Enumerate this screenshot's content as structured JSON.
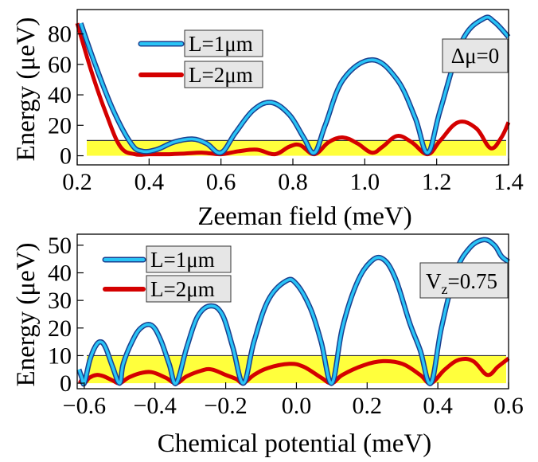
{
  "colors": {
    "series_L1_fill": "#29c4f6",
    "series_L1_outline": "#1a3f8f",
    "series_L2": "#d40000",
    "band": "#ffff3c",
    "annotation_box": "#e6e6e6"
  },
  "chart_data": [
    {
      "type": "line",
      "xlabel": "Zeeman field (meV)",
      "ylabel": "Energy (μeV)",
      "xlim": [
        0.2,
        1.4
      ],
      "ylim": [
        -6,
        96
      ],
      "xticks": [
        "0.2",
        "0.4",
        "0.6",
        "0.8",
        "1.0",
        "1.2",
        "1.4"
      ],
      "yticks": [
        "0",
        "20",
        "40",
        "60",
        "80"
      ],
      "legend": {
        "position": "top-left",
        "entries": [
          "L=1μm",
          "L=2μm"
        ]
      },
      "annotation": "Δμ=0",
      "band": {
        "ymin": 0,
        "ymax": 10
      },
      "series": [
        {
          "name": "L=1μm",
          "x": [
            0.21,
            0.25,
            0.3,
            0.35,
            0.38,
            0.42,
            0.47,
            0.52,
            0.56,
            0.6,
            0.64,
            0.69,
            0.74,
            0.79,
            0.83,
            0.86,
            0.89,
            0.94,
            1.02,
            1.09,
            1.14,
            1.175,
            1.21,
            1.27,
            1.33,
            1.36,
            1.4
          ],
          "values": [
            87,
            60,
            30,
            8,
            3,
            4,
            9,
            11,
            8,
            2,
            15,
            30,
            35,
            27,
            12,
            2,
            20,
            50,
            63,
            50,
            25,
            2,
            30,
            75,
            90,
            88,
            78
          ]
        },
        {
          "name": "L=2μm",
          "x": [
            0.2,
            0.24,
            0.28,
            0.32,
            0.36,
            0.4,
            0.45,
            0.5,
            0.55,
            0.6,
            0.65,
            0.7,
            0.75,
            0.79,
            0.82,
            0.86,
            0.9,
            0.94,
            0.98,
            1.02,
            1.05,
            1.09,
            1.13,
            1.175,
            1.21,
            1.26,
            1.31,
            1.35,
            1.38,
            1.4
          ],
          "values": [
            87,
            55,
            28,
            6,
            1,
            1,
            1,
            1.5,
            2,
            1,
            3,
            4,
            1,
            6,
            7,
            1,
            9,
            12,
            8,
            2,
            6,
            13,
            9,
            1,
            10,
            22,
            18,
            5,
            12,
            22
          ]
        }
      ]
    },
    {
      "type": "line",
      "xlabel": "Chemical potential (meV)",
      "ylabel": "Energy (μeV)",
      "xlim": [
        -0.62,
        0.6
      ],
      "ylim": [
        -2,
        54
      ],
      "xticks": [
        "−0.6",
        "−0.4",
        "−0.2",
        "0.0",
        "0.2",
        "0.4",
        "0.6"
      ],
      "yticks": [
        "0",
        "10",
        "20",
        "30",
        "40",
        "50"
      ],
      "legend": {
        "position": "top-left",
        "entries": [
          "L=1μm",
          "L=2μm"
        ]
      },
      "annotation": "V",
      "annotation_sub": "z",
      "annotation_tail": "=0.75",
      "band": {
        "ymin": 0,
        "ymax": 10
      },
      "series": [
        {
          "name": "L=1μm",
          "x": [
            -0.615,
            -0.607,
            -0.6,
            -0.585,
            -0.57,
            -0.555,
            -0.54,
            -0.52,
            -0.5,
            -0.49,
            -0.465,
            -0.44,
            -0.41,
            -0.385,
            -0.36,
            -0.34,
            -0.31,
            -0.28,
            -0.245,
            -0.21,
            -0.18,
            -0.15,
            -0.12,
            -0.08,
            -0.03,
            0.0,
            0.04,
            0.07,
            0.1,
            0.13,
            0.17,
            0.21,
            0.245,
            0.28,
            0.32,
            0.35,
            0.38,
            0.41,
            0.45,
            0.49,
            0.53,
            0.56,
            0.58,
            0.6
          ],
          "values": [
            5,
            2,
            0,
            8,
            13,
            15,
            13,
            6,
            0,
            7,
            15,
            20,
            21,
            16,
            7,
            0,
            13,
            24,
            28,
            25,
            13,
            0,
            15,
            30,
            37,
            36,
            27,
            15,
            0,
            20,
            36,
            44,
            45,
            38,
            22,
            12,
            0,
            20,
            40,
            49,
            52,
            50,
            46,
            44
          ]
        },
        {
          "name": "L=2μm",
          "x": [
            -0.615,
            -0.6,
            -0.585,
            -0.565,
            -0.545,
            -0.52,
            -0.5,
            -0.475,
            -0.445,
            -0.41,
            -0.37,
            -0.34,
            -0.31,
            -0.27,
            -0.24,
            -0.2,
            -0.17,
            -0.15,
            -0.12,
            -0.08,
            -0.02,
            0.02,
            0.07,
            0.1,
            0.13,
            0.19,
            0.245,
            0.3,
            0.35,
            0.38,
            0.42,
            0.46,
            0.5,
            0.54,
            0.57,
            0.6
          ],
          "values": [
            1,
            0,
            2,
            3,
            2.5,
            1,
            0,
            2,
            3.5,
            4,
            2,
            0,
            2.5,
            4.5,
            5,
            3,
            1.5,
            0,
            3,
            5.5,
            7,
            6,
            2,
            0,
            3,
            6.5,
            8,
            7,
            3,
            0,
            5,
            8.5,
            8,
            3,
            6,
            9
          ]
        }
      ]
    }
  ]
}
